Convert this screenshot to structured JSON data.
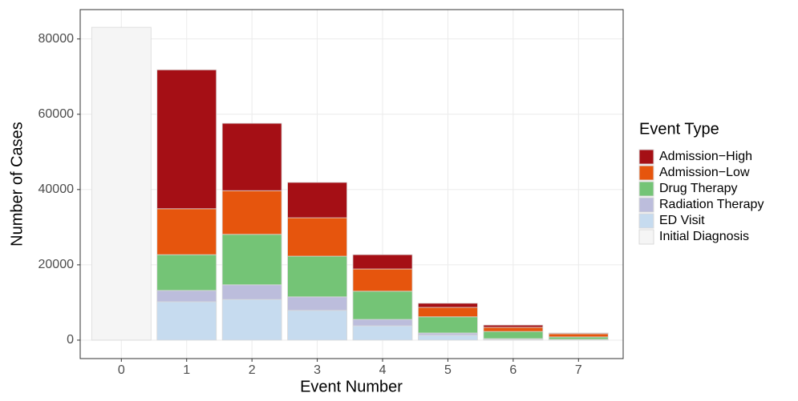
{
  "chart_data": {
    "type": "stacked_bar",
    "x_label": "Event Number",
    "y_label": "Number of Cases",
    "legend_title": "Event Type",
    "categories": [
      "0",
      "1",
      "2",
      "3",
      "4",
      "5",
      "6",
      "7"
    ],
    "series": [
      {
        "name": "Admission−High",
        "color": "#a50f15",
        "values": [
          0,
          36900,
          17900,
          9400,
          3800,
          1100,
          600,
          200
        ]
      },
      {
        "name": "Admission−Low",
        "color": "#e6550d",
        "values": [
          0,
          12200,
          11600,
          10200,
          5900,
          2500,
          1100,
          850
        ]
      },
      {
        "name": "Drug Therapy",
        "color": "#74c476",
        "values": [
          0,
          9500,
          13400,
          10800,
          7500,
          4300,
          1900,
          650
        ]
      },
      {
        "name": "Radiation Therapy",
        "color": "#bcbddc",
        "values": [
          0,
          3000,
          3900,
          3600,
          1700,
          600,
          200,
          100
        ]
      },
      {
        "name": "ED Visit",
        "color": "#c6dbef",
        "values": [
          0,
          10200,
          10800,
          7900,
          3800,
          1300,
          200,
          100
        ]
      },
      {
        "name": "Initial Diagnosis",
        "color": "#f5f5f5",
        "values": [
          83100,
          0,
          0,
          0,
          0,
          0,
          0,
          0
        ]
      }
    ],
    "ylim": [
      -4900,
      87800
    ],
    "yticks": [
      0,
      20000,
      40000,
      60000,
      80000
    ],
    "grid": true,
    "legend": "right"
  }
}
